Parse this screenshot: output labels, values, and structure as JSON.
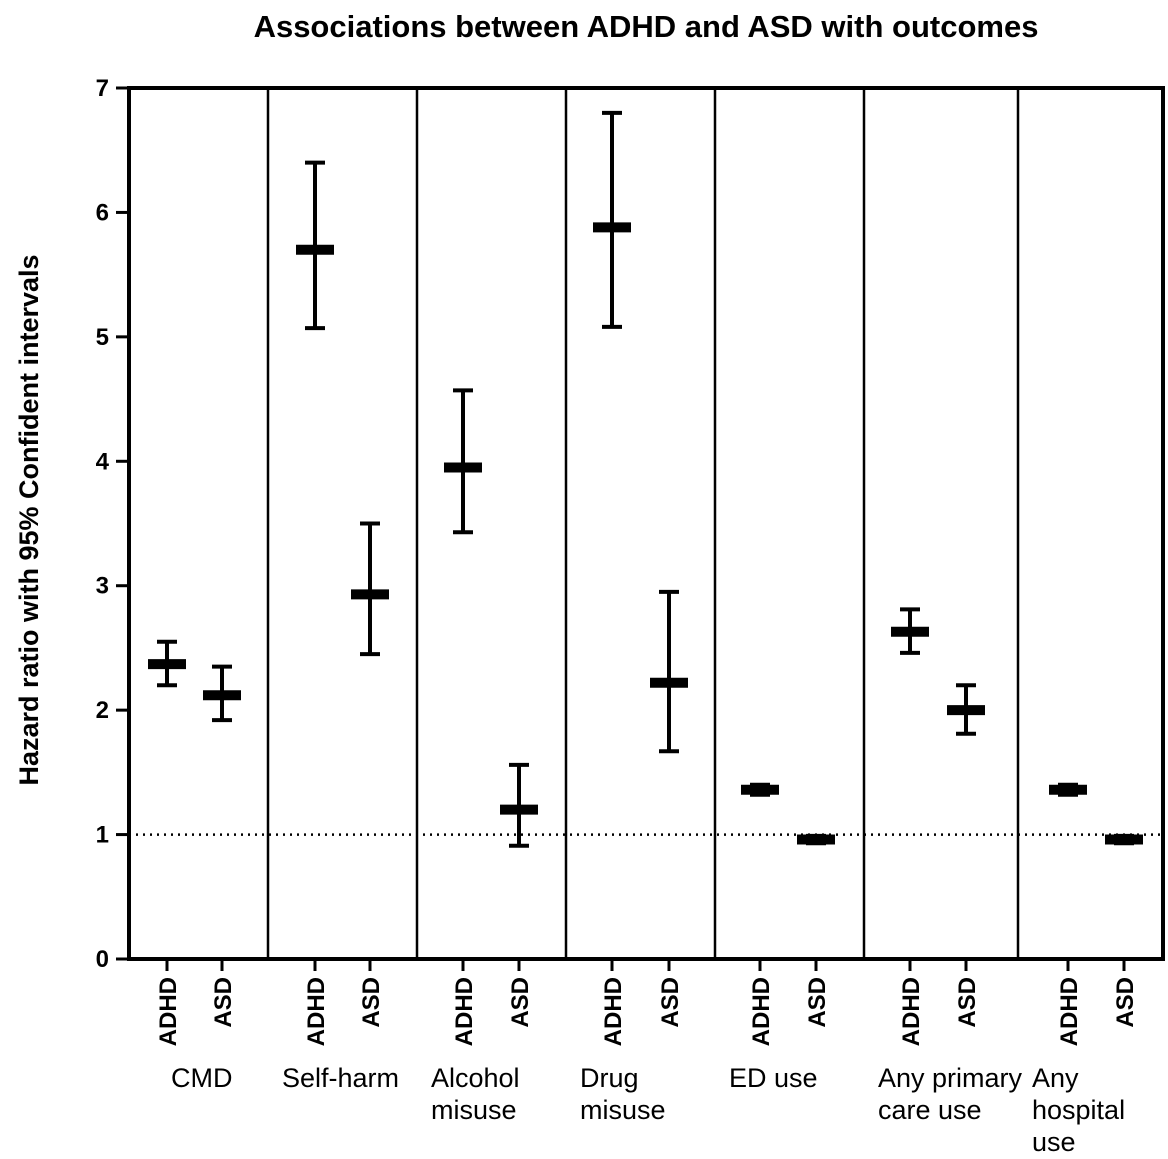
{
  "chart_data": {
    "type": "error-bar",
    "title": "Associations between ADHD and ASD with outcomes",
    "ylabel": "Hazard ratio with 95% Confident intervals",
    "ylim": [
      0,
      7
    ],
    "yticks": [
      "0",
      "1",
      "2",
      "3",
      "4",
      "5",
      "6",
      "7"
    ],
    "reference_line": 1,
    "groups": [
      {
        "label": [
          "CMD"
        ],
        "points": [
          {
            "label": "ADHD",
            "estimate": 2.37,
            "lower": 2.2,
            "upper": 2.55
          },
          {
            "label": "ASD",
            "estimate": 2.12,
            "lower": 1.92,
            "upper": 2.35
          }
        ]
      },
      {
        "label": [
          "Self-harm"
        ],
        "points": [
          {
            "label": "ADHD",
            "estimate": 5.7,
            "lower": 5.07,
            "upper": 6.4
          },
          {
            "label": "ASD",
            "estimate": 2.93,
            "lower": 2.45,
            "upper": 3.5
          }
        ]
      },
      {
        "label": [
          "Alcohol",
          "misuse"
        ],
        "points": [
          {
            "label": "ADHD",
            "estimate": 3.95,
            "lower": 3.43,
            "upper": 4.57
          },
          {
            "label": "ASD",
            "estimate": 1.2,
            "lower": 0.91,
            "upper": 1.56
          }
        ]
      },
      {
        "label": [
          "Drug",
          "misuse"
        ],
        "points": [
          {
            "label": "ADHD",
            "estimate": 5.88,
            "lower": 5.08,
            "upper": 6.8
          },
          {
            "label": "ASD",
            "estimate": 2.22,
            "lower": 1.67,
            "upper": 2.95
          }
        ]
      },
      {
        "label": [
          "ED use"
        ],
        "points": [
          {
            "label": "ADHD",
            "estimate": 1.36,
            "lower": 1.32,
            "upper": 1.4
          },
          {
            "label": "ASD",
            "estimate": 0.96,
            "lower": 0.93,
            "upper": 0.99
          }
        ]
      },
      {
        "label": [
          "Any primary",
          "care use"
        ],
        "points": [
          {
            "label": "ADHD",
            "estimate": 2.63,
            "lower": 2.46,
            "upper": 2.81
          },
          {
            "label": "ASD",
            "estimate": 2.0,
            "lower": 1.81,
            "upper": 2.2
          }
        ]
      },
      {
        "label": [
          "Any",
          "hospital",
          "use"
        ],
        "points": [
          {
            "label": "ADHD",
            "estimate": 1.36,
            "lower": 1.32,
            "upper": 1.4
          },
          {
            "label": "ASD",
            "estimate": 0.96,
            "lower": 0.93,
            "upper": 0.99
          }
        ]
      }
    ],
    "grid": false,
    "colors": {
      "marks": "#000000",
      "background": "#ffffff"
    }
  }
}
